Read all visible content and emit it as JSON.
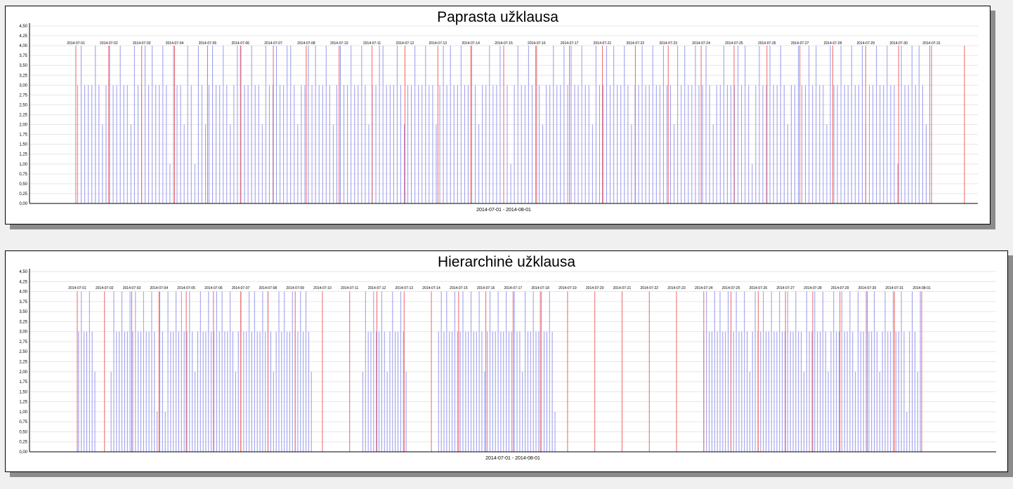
{
  "chart_data": [
    {
      "type": "bar",
      "title": "Paprasta užklausa",
      "xlabel": "2014-07-01 - 2014-08-01",
      "ylabel": "",
      "ylim": [
        0,
        4.5
      ],
      "y_ticks": [
        "0,00",
        "0,25",
        "0,50",
        "0,75",
        "1,00",
        "1,25",
        "1,50",
        "1,75",
        "2,00",
        "2,25",
        "2,50",
        "2,75",
        "3,00",
        "3,25",
        "3,50",
        "3,75",
        "4,00",
        "4,25",
        "4,50"
      ],
      "grid": true,
      "day_labels": [
        "2014-07-01",
        "2014-07-02",
        "2014-07-03",
        "2014-07-04",
        "2014-07-05",
        "2014-07-06",
        "2014-07-07",
        "2014-07-08",
        "2014-07-10",
        "2014-07-11",
        "2014-07-12",
        "2014-07-13",
        "2014-07-14",
        "2014-07-15",
        "2014-07-16",
        "2014-07-17",
        "2014-07-21",
        "2014-07-22",
        "2014-07-23",
        "2014-07-24",
        "2014-07-25",
        "2014-07-26",
        "2014-07-27",
        "2014-07-28",
        "2014-07-29",
        "2014-07-30",
        "2014-07-31"
      ],
      "series": [
        {
          "color": "#9999ee",
          "values": [
            3,
            4,
            3,
            3,
            3,
            4,
            3,
            2,
            3,
            4,
            3,
            3,
            4,
            3,
            3,
            2,
            4,
            3,
            3,
            4,
            3,
            4,
            3,
            3,
            4,
            3,
            1,
            4,
            3,
            3,
            2,
            4,
            3,
            1,
            4,
            3,
            2,
            3,
            4,
            3,
            3,
            4,
            3,
            2,
            3,
            4,
            4,
            3,
            3,
            4,
            3,
            3,
            2,
            4,
            3,
            3,
            4,
            3,
            3,
            4,
            4,
            3,
            2,
            3,
            3,
            4,
            3,
            4,
            3,
            3,
            4,
            3,
            2,
            3,
            4,
            3,
            3,
            4,
            3,
            3,
            4,
            3,
            2,
            3,
            3,
            4,
            4,
            3,
            3,
            3,
            4,
            3,
            2,
            3,
            3,
            4,
            3,
            3,
            4,
            3,
            3,
            2,
            3,
            4,
            3,
            4,
            3,
            3,
            4,
            3,
            3,
            4,
            3,
            2,
            3,
            3,
            4,
            3,
            3,
            4,
            3,
            3,
            1,
            3,
            4,
            3,
            3,
            4,
            3,
            4,
            3,
            2,
            3,
            3,
            4,
            3,
            3,
            4,
            3,
            4,
            3,
            3,
            4,
            3,
            3,
            2,
            4,
            3,
            3,
            4,
            3,
            4,
            3,
            3,
            4,
            3,
            2,
            3,
            3,
            4,
            3,
            3,
            4,
            3,
            3,
            4,
            3,
            3,
            2,
            4,
            3,
            4,
            3,
            3,
            4,
            3,
            3,
            4,
            3,
            2,
            3,
            3,
            4,
            3,
            3,
            3,
            4,
            3,
            4,
            3,
            1,
            3,
            4,
            3,
            3,
            4,
            3,
            3,
            4,
            3,
            2,
            3,
            3,
            4,
            3,
            3,
            4,
            3,
            4,
            3,
            3,
            2,
            4,
            3,
            3,
            4,
            3,
            3,
            4,
            3,
            3,
            4,
            2,
            3,
            3,
            4,
            3,
            3,
            4,
            3,
            3,
            1,
            4,
            3,
            3,
            4,
            3,
            4,
            3,
            2,
            4
          ]
        },
        {
          "color": "#ee6666",
          "values": [
            4,
            4,
            4,
            4,
            4,
            4,
            4,
            4,
            4,
            4,
            4,
            4,
            4,
            4,
            4,
            4,
            4,
            4,
            4,
            4,
            4,
            4,
            4,
            4,
            4,
            4,
            4,
            4,
            4,
            4,
            4
          ]
        }
      ]
    },
    {
      "type": "bar",
      "title": "Hierarchinė užklausa",
      "xlabel": "2014-07-01 - 2014-08-01",
      "ylabel": "",
      "ylim": [
        0,
        4.5
      ],
      "y_ticks": [
        "0,00",
        "0,25",
        "0,50",
        "0,75",
        "1,00",
        "1,25",
        "1,50",
        "1,75",
        "2,00",
        "2,25",
        "2,50",
        "2,75",
        "3,00",
        "3,25",
        "3,50",
        "3,75",
        "4,00",
        "4,25",
        "4,50"
      ],
      "grid": true,
      "day_labels": [
        "2014-07-01",
        "2014-07-02",
        "2014-07-03",
        "2014-07-04",
        "2014-07-05",
        "2014-07-06",
        "2014-07-07",
        "2014-07-08",
        "2014-07-09",
        "2014-07-10",
        "2014-07-11",
        "2014-07-12",
        "2014-07-13",
        "2014-07-14",
        "2014-07-15",
        "2014-07-16",
        "2014-07-17",
        "2014-07-18",
        "2014-07-19",
        "2014-07-20",
        "2014-07-21",
        "2014-07-22",
        "2014-07-23",
        "2014-07-24",
        "2014-07-25",
        "2014-07-26",
        "2014-07-27",
        "2014-07-28",
        "2014-07-29",
        "2014-07-30",
        "2014-07-31",
        "2014-08-01"
      ],
      "series": [
        {
          "color": "#9999ee",
          "values": [
            3,
            4,
            3,
            3,
            4,
            3,
            2,
            0,
            0,
            0,
            0,
            0,
            2,
            4,
            3,
            3,
            4,
            3,
            3,
            4,
            3,
            4,
            3,
            3,
            4,
            3,
            3,
            4,
            3,
            1,
            4,
            3,
            1,
            4,
            3,
            3,
            4,
            3,
            4,
            3,
            3,
            4,
            3,
            2,
            3,
            4,
            3,
            3,
            4,
            3,
            3,
            4,
            3,
            4,
            3,
            3,
            4,
            3,
            2,
            3,
            4,
            3,
            3,
            4,
            3,
            4,
            3,
            3,
            4,
            3,
            4,
            3,
            2,
            3,
            4,
            3,
            4,
            3,
            3,
            4,
            3,
            3,
            4,
            3,
            4,
            3,
            2,
            0,
            0,
            0,
            0,
            0,
            0,
            0,
            0,
            0,
            0,
            0,
            0,
            0,
            0,
            0,
            0,
            0,
            0,
            2,
            4,
            3,
            3,
            4,
            3,
            3,
            4,
            3,
            2,
            3,
            4,
            3,
            3,
            4,
            3,
            2,
            0,
            0,
            0,
            0,
            0,
            0,
            0,
            0,
            0,
            0,
            0,
            3,
            4,
            3,
            4,
            3,
            3,
            4,
            3,
            3,
            4,
            3,
            3,
            4,
            3,
            3,
            4,
            3,
            2,
            3,
            4,
            3,
            3,
            4,
            3,
            3,
            4,
            3,
            3,
            4,
            3,
            3,
            2,
            4,
            3,
            3,
            4,
            3,
            3,
            4,
            3,
            3,
            4,
            3,
            1,
            0,
            0,
            0,
            0,
            0,
            0,
            0,
            0,
            0,
            0,
            0,
            0,
            0,
            0,
            0,
            0,
            0,
            0,
            0,
            0,
            0,
            0,
            0,
            0,
            0,
            0,
            0,
            0,
            0,
            0,
            0,
            0,
            0,
            0,
            0,
            0,
            0,
            0,
            0,
            0,
            0,
            0,
            0,
            0,
            0,
            0,
            0,
            0,
            0,
            0,
            0,
            0,
            0,
            0,
            3,
            4,
            3,
            3,
            4,
            3,
            4,
            3,
            3,
            4,
            3,
            3,
            4,
            3,
            3,
            4,
            3,
            2,
            3,
            4,
            3,
            3,
            4,
            3,
            3,
            4,
            3,
            3,
            4,
            3,
            3,
            4,
            3,
            3,
            4,
            3,
            3,
            2,
            4,
            3,
            3,
            4,
            3,
            3,
            4,
            3,
            2,
            3,
            4,
            3,
            3,
            4,
            3,
            3,
            4,
            3,
            2,
            4,
            3,
            3,
            4,
            3,
            3,
            4,
            3,
            2,
            3,
            4,
            3,
            3,
            4,
            3,
            3,
            4,
            3,
            1,
            3,
            4,
            3,
            2,
            4
          ]
        },
        {
          "color": "#ee6666",
          "values": [
            4,
            4,
            4,
            4,
            4,
            4,
            4,
            4,
            4,
            4,
            4,
            4,
            4,
            4,
            4,
            4,
            4,
            4,
            4,
            4,
            4,
            4,
            4,
            4,
            4,
            4,
            4,
            4,
            4,
            4,
            4,
            4
          ]
        }
      ]
    }
  ]
}
